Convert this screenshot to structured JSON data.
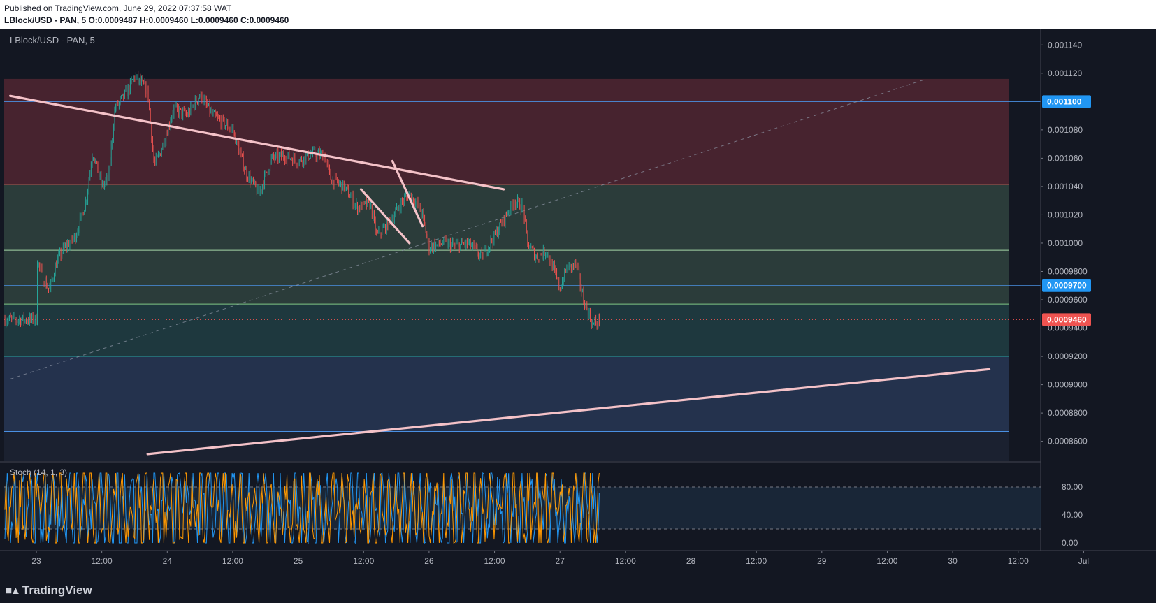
{
  "header": {
    "published": "Published on TradingView.com, June 29, 2022 07:37:58 WAT",
    "symbol_line": "LBlock/USD - PAN, 5  O:0.0009487 H:0.0009460 L:0.0009460 C:0.0009460"
  },
  "legend": {
    "symbol": "LBlock/USD - PAN, 5",
    "stoch_label": "Stoch (14, 1, 3)"
  },
  "branding": {
    "logo_text": "TradingView",
    "logo_icon": "tradingview-logo-icon"
  },
  "colors": {
    "background": "#131722",
    "red_zone": "#4a2430",
    "green_zone": "#2c3e3c",
    "teal_zone": "#1f3a40",
    "blue_zone": "#253450",
    "trendline": "#f4c2c8",
    "candle_up": "#26a69a",
    "candle_down": "#ef5350",
    "stoch_k": "#2196f3",
    "stoch_d": "#ff9800",
    "price_badge": "#ef5350",
    "level_badge": "#2196f3"
  },
  "chart_data": {
    "type": "candlestick",
    "price_axis": {
      "ticks": [
        "0.001140",
        "0.001120",
        "0.001080",
        "0.001060",
        "0.001040",
        "0.001020",
        "0.001000",
        "0.0009800",
        "0.0009600",
        "0.0009400",
        "0.0009200",
        "0.0009000",
        "0.0008800",
        "0.0008600"
      ],
      "badges": [
        {
          "label": "0.001100",
          "value": 0.0011,
          "kind": "level"
        },
        {
          "label": "0.0009700",
          "value": 0.00097,
          "kind": "level"
        },
        {
          "label": "0.0009460",
          "value": 0.000946,
          "kind": "price"
        }
      ]
    },
    "time_axis": {
      "ticks": [
        "23",
        "12:00",
        "24",
        "12:00",
        "25",
        "12:00",
        "26",
        "12:00",
        "27",
        "12:00",
        "28",
        "12:00",
        "29",
        "12:00",
        "30",
        "12:00",
        "Jul"
      ]
    },
    "ylim": [
      0.00085,
      0.00115
    ],
    "horizontal_levels": [
      0.0011,
      0.0010415,
      0.000995,
      0.00097,
      0.000957,
      0.00092,
      0.000867
    ],
    "zones": [
      {
        "name": "supply-zone",
        "from": 0.0010415,
        "to": 0.001116
      },
      {
        "name": "mid-zone",
        "from": 0.000957,
        "to": 0.0010415
      },
      {
        "name": "lower-zone",
        "from": 0.00092,
        "to": 0.000957
      },
      {
        "name": "demand-zone",
        "from": 0.000867,
        "to": 0.00092
      }
    ],
    "close_path": [
      {
        "t": 0.0,
        "p": 0.00099
      },
      {
        "t": 0.05,
        "p": 0.000975
      },
      {
        "t": 0.1,
        "p": 0.000967
      },
      {
        "t": 0.15,
        "p": 0.000985
      },
      {
        "t": 0.2,
        "p": 0.000995
      },
      {
        "t": 0.3,
        "p": 0.001005
      },
      {
        "t": 0.38,
        "p": 0.00103
      },
      {
        "t": 0.43,
        "p": 0.001065
      },
      {
        "t": 0.5,
        "p": 0.00104
      },
      {
        "t": 0.55,
        "p": 0.001045
      },
      {
        "t": 0.6,
        "p": 0.001095
      },
      {
        "t": 0.7,
        "p": 0.001108
      },
      {
        "t": 0.75,
        "p": 0.001118
      },
      {
        "t": 0.85,
        "p": 0.001108
      },
      {
        "t": 0.9,
        "p": 0.001055
      },
      {
        "t": 0.95,
        "p": 0.001065
      },
      {
        "t": 1.05,
        "p": 0.001095
      },
      {
        "t": 1.15,
        "p": 0.00109
      },
      {
        "t": 1.25,
        "p": 0.001105
      },
      {
        "t": 1.35,
        "p": 0.00109
      },
      {
        "t": 1.5,
        "p": 0.00108
      },
      {
        "t": 1.6,
        "p": 0.00105
      },
      {
        "t": 1.7,
        "p": 0.001035
      },
      {
        "t": 1.8,
        "p": 0.00106
      },
      {
        "t": 1.9,
        "p": 0.001062
      },
      {
        "t": 2.0,
        "p": 0.001058
      },
      {
        "t": 2.1,
        "p": 0.001063
      },
      {
        "t": 2.2,
        "p": 0.001062
      },
      {
        "t": 2.25,
        "p": 0.001045
      },
      {
        "t": 2.35,
        "p": 0.00104
      },
      {
        "t": 2.45,
        "p": 0.001025
      },
      {
        "t": 2.55,
        "p": 0.001028
      },
      {
        "t": 2.6,
        "p": 0.001005
      },
      {
        "t": 2.7,
        "p": 0.001015
      },
      {
        "t": 2.8,
        "p": 0.00103
      },
      {
        "t": 2.85,
        "p": 0.001035
      },
      {
        "t": 2.95,
        "p": 0.00102
      },
      {
        "t": 3.0,
        "p": 0.000997
      },
      {
        "t": 3.1,
        "p": 0.001
      },
      {
        "t": 3.2,
        "p": 0.000998
      },
      {
        "t": 3.3,
        "p": 0.001
      },
      {
        "t": 3.4,
        "p": 0.00099
      },
      {
        "t": 3.5,
        "p": 0.001005
      },
      {
        "t": 3.6,
        "p": 0.001022
      },
      {
        "t": 3.65,
        "p": 0.00103
      },
      {
        "t": 3.72,
        "p": 0.001025
      },
      {
        "t": 3.75,
        "p": 0.001
      },
      {
        "t": 3.82,
        "p": 0.00099
      },
      {
        "t": 3.9,
        "p": 0.000995
      },
      {
        "t": 4.0,
        "p": 0.000968
      },
      {
        "t": 4.05,
        "p": 0.000982
      },
      {
        "t": 4.12,
        "p": 0.000985
      },
      {
        "t": 4.18,
        "p": 0.00096
      },
      {
        "t": 4.25,
        "p": 0.000942
      },
      {
        "t": 4.3,
        "p": 0.000946
      }
    ],
    "drawings": [
      {
        "name": "descending-trendline",
        "from": {
          "t": -0.2,
          "p": 0.001104
        },
        "to": {
          "t": 3.57,
          "p": 0.001038
        }
      },
      {
        "name": "ascending-support-line",
        "from": {
          "t": 0.85,
          "p": 0.000851
        },
        "to": {
          "t": 7.28,
          "p": 0.000911
        }
      },
      {
        "name": "wedge-upper-line",
        "from": {
          "t": 2.72,
          "p": 0.001058
        },
        "to": {
          "t": 2.95,
          "p": 0.001012
        }
      },
      {
        "name": "wedge-lower-line",
        "from": {
          "t": 2.48,
          "p": 0.001038
        },
        "to": {
          "t": 2.85,
          "p": 0.001
        }
      }
    ],
    "dashed_diagonal": {
      "from": {
        "t": -0.2,
        "p": 0.000904
      },
      "to": {
        "t": 6.8,
        "p": 0.001116
      }
    },
    "stochastic": {
      "range": [
        0,
        100
      ],
      "ticks": [
        "80.00",
        "40.00",
        "0.00"
      ],
      "upper_band": 80,
      "lower_band": 20
    }
  }
}
